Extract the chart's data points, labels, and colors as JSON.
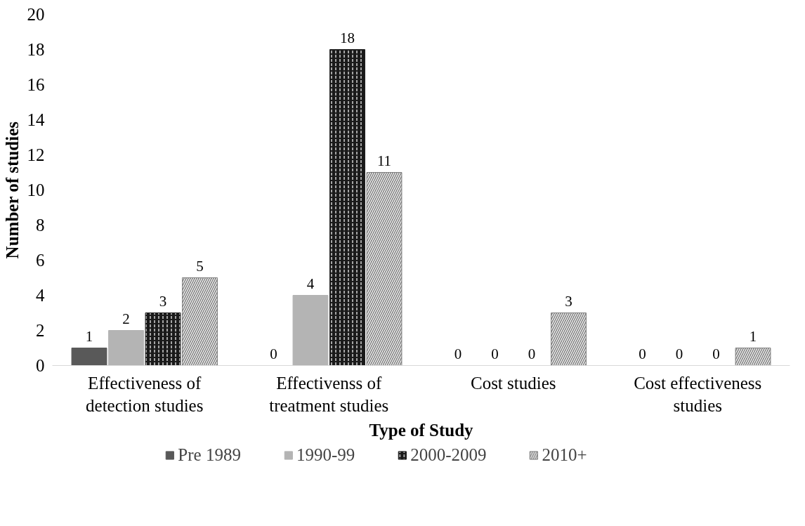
{
  "chart_data": {
    "type": "bar",
    "xlabel": "Type of Study",
    "ylabel": "Number of studies",
    "categories": [
      "Effectiveness of detection studies",
      "Effectivenss of treatment studies",
      "Cost studies",
      "Cost effectiveness studies"
    ],
    "series": [
      {
        "name": "Pre 1989",
        "color": "#595959",
        "values": [
          1,
          0,
          0,
          0
        ]
      },
      {
        "name": "1990-99",
        "color": "#b4b4b4",
        "values": [
          2,
          4,
          0,
          0
        ]
      },
      {
        "name": "2000-2009",
        "color": "#1a1a1a",
        "values": [
          3,
          18,
          0,
          0
        ]
      },
      {
        "name": "2010+",
        "color": "#7f7f7f",
        "values": [
          5,
          11,
          3,
          1
        ]
      }
    ],
    "ylim": [
      0,
      20
    ],
    "yticks": [
      0,
      2,
      4,
      6,
      8,
      10,
      12,
      14,
      16,
      18,
      20
    ],
    "data_labels": true,
    "grid": false,
    "legend": "bottom"
  }
}
